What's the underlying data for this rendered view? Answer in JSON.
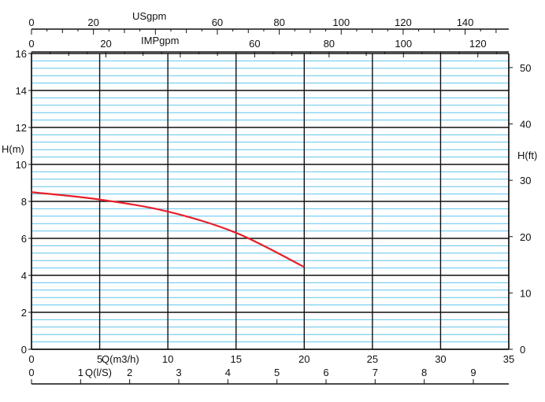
{
  "chart_data": {
    "type": "line",
    "title": "",
    "xlabel": "Q(m3/h)",
    "ylabel": "H(m)",
    "y2label": "H(ft)",
    "xlim": [
      0,
      35
    ],
    "ylim": [
      0,
      16
    ],
    "y2lim": [
      0,
      52.5
    ],
    "x_major_ticks": [
      0,
      5,
      10,
      15,
      20,
      25,
      30,
      35
    ],
    "y_major_ticks": [
      0,
      2,
      4,
      6,
      8,
      10,
      12,
      14,
      16
    ],
    "y2_ticks": [
      0,
      10,
      20,
      30,
      40,
      50
    ],
    "grid": true,
    "top_axes": [
      {
        "label": "USgpm",
        "ticks": [
          0,
          20,
          40,
          60,
          80,
          100,
          120,
          140
        ],
        "labels": [
          "0",
          "20",
          "",
          "60",
          "80",
          "100",
          "120",
          "140"
        ]
      },
      {
        "label": "IMPgpm",
        "ticks": [
          0,
          20,
          40,
          60,
          80,
          100,
          120
        ],
        "labels": [
          "0",
          "20",
          "",
          "60",
          "80",
          "100",
          "120"
        ]
      }
    ],
    "bottom_axis2": {
      "label": "Q(l/S)",
      "ticks": [
        0,
        1,
        2,
        3,
        4,
        5,
        6,
        7,
        8,
        9
      ],
      "labels": [
        "0",
        "1",
        "2",
        "3",
        "4",
        "5",
        "6",
        "7",
        "8",
        "9"
      ]
    },
    "series": [
      {
        "color": "#e8202a",
        "x": [
          0,
          5,
          10,
          15,
          20
        ],
        "y": [
          8.5,
          8.1,
          7.45,
          6.3,
          4.45
        ]
      }
    ]
  }
}
